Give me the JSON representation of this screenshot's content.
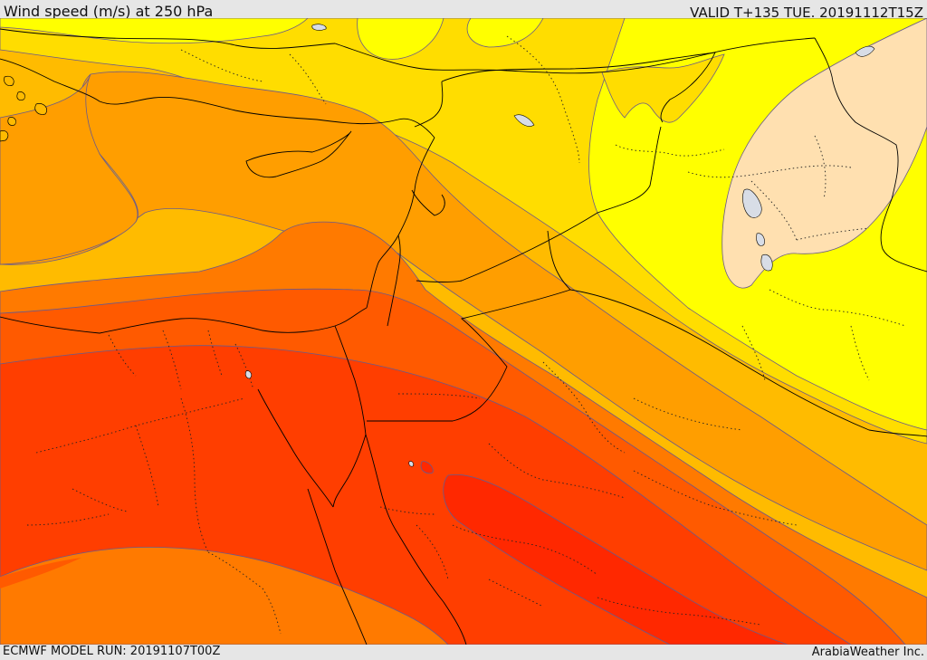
{
  "header": {
    "title": "Wind speed (m/s) at 250 hPa",
    "valid_time": "VALID T+135 TUE. 20191112T15Z"
  },
  "footer": {
    "model_run": "ECMWF MODEL RUN: 20191107T00Z",
    "credit": "ArabiaWeather Inc."
  },
  "map": {
    "field": "wind-speed-250hPa",
    "shading_colors": {
      "band_1": "#ffe0b0",
      "band_2": "#ffff00",
      "band_3": "#ffdd00",
      "band_4": "#ffbb00",
      "band_5": "#ff9e00",
      "band_6": "#ff7a00",
      "band_7": "#ff5a00",
      "band_8": "#ff3e00",
      "band_9": "#ff2800",
      "lakes": "#d8dde6",
      "contour_line": "#7060a0",
      "coastline": "#000000"
    }
  }
}
